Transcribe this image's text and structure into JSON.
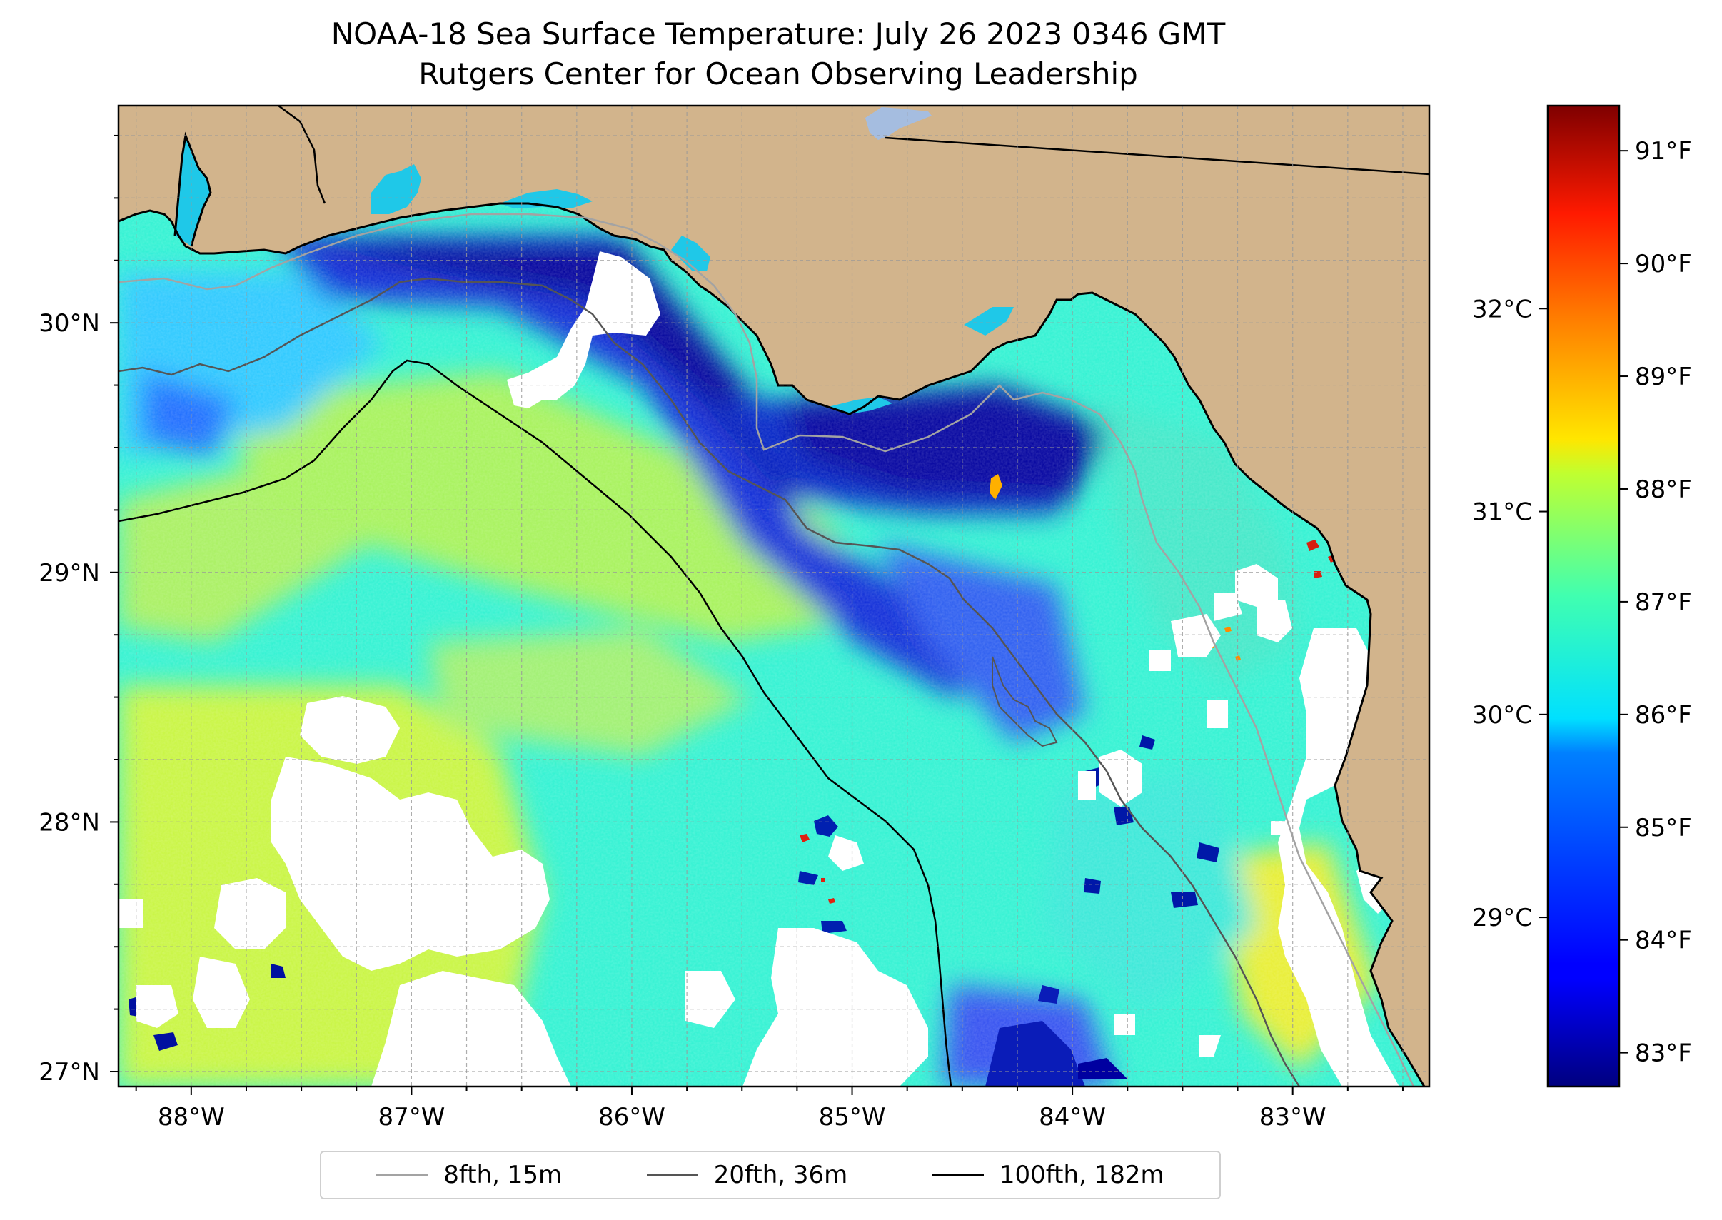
{
  "title": {
    "line1": "NOAA-18 Sea Surface Temperature: July 26 2023 0346 GMT",
    "line2": "Rutgers Center for Ocean Observing Leadership"
  },
  "map": {
    "lon_range": [
      -88.33,
      -82.38
    ],
    "lat_range": [
      26.94,
      30.87
    ],
    "lon_ticks": [
      {
        "value": -88,
        "label": "88°W"
      },
      {
        "value": -87,
        "label": "87°W"
      },
      {
        "value": -86,
        "label": "86°W"
      },
      {
        "value": -85,
        "label": "85°W"
      },
      {
        "value": -84,
        "label": "84°W"
      },
      {
        "value": -83,
        "label": "83°W"
      }
    ],
    "lat_ticks": [
      {
        "value": 27,
        "label": "27°N"
      },
      {
        "value": 28,
        "label": "28°N"
      },
      {
        "value": 29,
        "label": "29°N"
      },
      {
        "value": 30,
        "label": "30°N"
      }
    ],
    "colors": {
      "land": "#d2b48c",
      "lake": "#a5bde0",
      "cloud": "#ffffff",
      "gridline": "#999999"
    }
  },
  "colorbar": {
    "colormap": "jet",
    "range_f": [
      82.7,
      91.4
    ],
    "fahrenheit_ticks": [
      {
        "value": 83,
        "label": "83°F"
      },
      {
        "value": 84,
        "label": "84°F"
      },
      {
        "value": 85,
        "label": "85°F"
      },
      {
        "value": 86,
        "label": "86°F"
      },
      {
        "value": 87,
        "label": "87°F"
      },
      {
        "value": 88,
        "label": "88°F"
      },
      {
        "value": 89,
        "label": "89°F"
      },
      {
        "value": 90,
        "label": "90°F"
      },
      {
        "value": 91,
        "label": "91°F"
      }
    ],
    "celsius_ticks": [
      {
        "value": 29,
        "label": "29°C"
      },
      {
        "value": 30,
        "label": "30°C"
      },
      {
        "value": 31,
        "label": "31°C"
      },
      {
        "value": 32,
        "label": "32°C"
      }
    ]
  },
  "legend": {
    "items": [
      {
        "label": "8fth, 15m",
        "color": "#a3a3a3"
      },
      {
        "label": "20fth, 36m",
        "color": "#555555"
      },
      {
        "label": "100fth, 182m",
        "color": "#000000"
      }
    ]
  }
}
